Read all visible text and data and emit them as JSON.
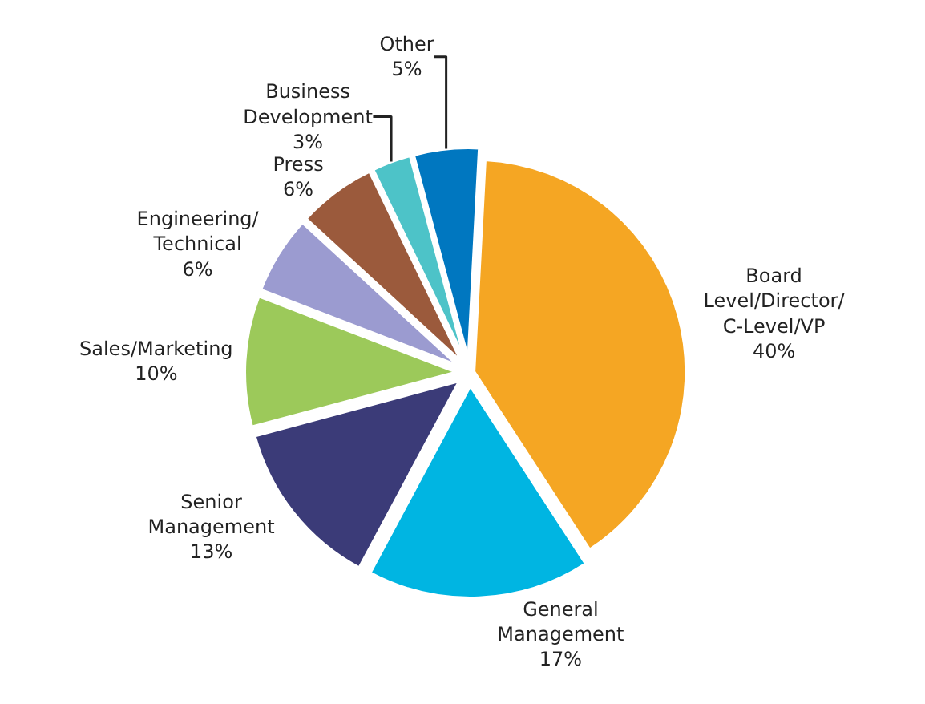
{
  "chart_data": {
    "type": "pie",
    "categories": [
      "Board\nLevel/Director/\nC-Level/VP",
      "General\nManagement",
      "Senior\nManagement",
      "Sales/Marketing",
      "Engineering/\nTechnical",
      "Press",
      "Business\nDevelopment",
      "Other"
    ],
    "values": [
      40,
      17,
      13,
      10,
      6,
      6,
      3,
      5
    ],
    "value_labels": [
      "40%",
      "17%",
      "13%",
      "10%",
      "6%",
      "6%",
      "3%",
      "5%"
    ],
    "colors": [
      "#f5a623",
      "#00b5e2",
      "#3b3b78",
      "#9cc95a",
      "#9b9bd0",
      "#9b5a3c",
      "#4dc3c8",
      "#0077c0"
    ],
    "legend": false
  }
}
